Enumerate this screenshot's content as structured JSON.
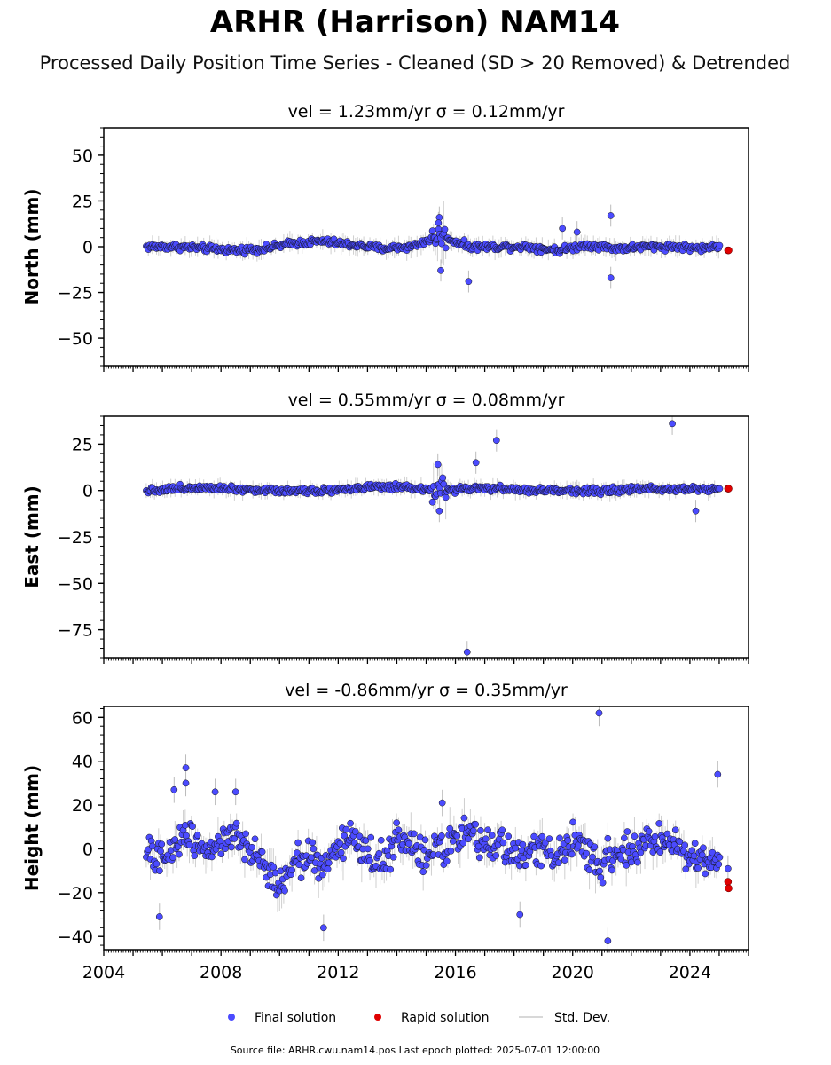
{
  "title": "ARHR (Harrison) NAM14",
  "subtitle": "Processed Daily Position Time Series - Cleaned (SD > 20 Removed) & Detrended",
  "footer": "Source file: ARHR.cwu.nam14.pos  Last epoch plotted: 2025-07-01 12:00:00",
  "legend": {
    "final": "Final solution",
    "rapid": "Rapid solution",
    "std": "Std. Dev."
  },
  "colors": {
    "final": "#4b4bff",
    "rapid": "#e00000",
    "std": "#bbbbbb",
    "edge": "#111111"
  },
  "chart_data": [
    {
      "type": "scatter",
      "panel_title": "vel = 1.23mm/yr   σ = 0.12mm/yr",
      "ylabel": "North (mm)",
      "xlim": [
        2004,
        2026
      ],
      "ylim": [
        -65,
        65
      ],
      "yticks": [
        "50",
        "25",
        "0",
        "−25",
        "−50"
      ],
      "ytick_values": [
        50,
        25,
        0,
        -25,
        -50
      ],
      "xticks": [
        "2004",
        "2008",
        "2012",
        "2016",
        "2020",
        "2024"
      ],
      "xtick_values": [
        2004,
        2008,
        2012,
        2016,
        2020,
        2024
      ],
      "series": [
        {
          "name": "Final solution",
          "x": [
            2005.5,
            2006.5,
            2007.5,
            2008.5,
            2009.5,
            2010.5,
            2011.5,
            2012.5,
            2013.5,
            2014.5,
            2015.45,
            2016.5,
            2017.5,
            2018.5,
            2019.5,
            2020.5,
            2021.5,
            2022.5,
            2023.5,
            2024.5,
            2025.1
          ],
          "y": [
            0,
            0,
            -1,
            -2,
            -1,
            2,
            3,
            1,
            -1,
            0,
            6,
            0,
            0,
            0,
            -2,
            1,
            -1,
            0,
            0,
            -1,
            1
          ]
        },
        {
          "name": "Rapid solution",
          "x": [
            2025.3,
            2025.32
          ],
          "y": [
            -2,
            -2
          ]
        }
      ],
      "outliers": [
        {
          "x": 2015.45,
          "y": 16
        },
        {
          "x": 2015.42,
          "y": 13
        },
        {
          "x": 2015.5,
          "y": -13
        },
        {
          "x": 2016.45,
          "y": -19
        },
        {
          "x": 2021.3,
          "y": 17
        },
        {
          "x": 2021.3,
          "y": -17
        },
        {
          "x": 2019.65,
          "y": 10
        },
        {
          "x": 2020.15,
          "y": 8
        }
      ]
    },
    {
      "type": "scatter",
      "panel_title": "vel = 0.55mm/yr   σ = 0.08mm/yr",
      "ylabel": "East (mm)",
      "xlim": [
        2004,
        2026
      ],
      "ylim": [
        -90,
        40
      ],
      "yticks": [
        "25",
        "0",
        "−25",
        "−50",
        "−75"
      ],
      "ytick_values": [
        25,
        0,
        -25,
        -50,
        -75
      ],
      "xticks": [
        "2004",
        "2008",
        "2012",
        "2016",
        "2020",
        "2024"
      ],
      "xtick_values": [
        2004,
        2008,
        2012,
        2016,
        2020,
        2024
      ],
      "series": [
        {
          "name": "Final solution",
          "x": [
            2005.5,
            2006.5,
            2007.5,
            2008.5,
            2009.5,
            2010.5,
            2011.5,
            2012.5,
            2013.5,
            2014.5,
            2015.4,
            2016.5,
            2017.5,
            2018.5,
            2019.5,
            2020.5,
            2021.5,
            2022.5,
            2023.5,
            2024.5
          ],
          "y": [
            0,
            1,
            2,
            1,
            0,
            0,
            0,
            1,
            2,
            1,
            0,
            1,
            1,
            0,
            0,
            0,
            0,
            1,
            1,
            1
          ]
        },
        {
          "name": "Rapid solution",
          "x": [
            2025.3,
            2025.32
          ],
          "y": [
            1,
            1
          ]
        }
      ],
      "outliers": [
        {
          "x": 2016.4,
          "y": -87
        },
        {
          "x": 2016.7,
          "y": 15
        },
        {
          "x": 2017.4,
          "y": 27
        },
        {
          "x": 2023.4,
          "y": 36
        },
        {
          "x": 2024.2,
          "y": -11
        },
        {
          "x": 2015.4,
          "y": 14
        },
        {
          "x": 2015.45,
          "y": -11
        }
      ]
    },
    {
      "type": "scatter",
      "panel_title": "vel = -0.86mm/yr   σ = 0.35mm/yr",
      "ylabel": "Height (mm)",
      "xlim": [
        2004,
        2026
      ],
      "ylim": [
        -46,
        65
      ],
      "yticks": [
        "60",
        "40",
        "20",
        "0",
        "−20",
        "−40"
      ],
      "ytick_values": [
        60,
        40,
        20,
        0,
        -20,
        -40
      ],
      "xticks": [
        "2004",
        "2008",
        "2012",
        "2016",
        "2020",
        "2024"
      ],
      "xtick_values": [
        2004,
        2008,
        2012,
        2016,
        2020,
        2024
      ],
      "series": [
        {
          "name": "Final solution",
          "x": [
            2005.5,
            2006.0,
            2006.5,
            2007.0,
            2007.5,
            2008.0,
            2008.5,
            2009.0,
            2009.5,
            2010.0,
            2010.5,
            2011.0,
            2011.5,
            2012.0,
            2012.5,
            2013.0,
            2013.5,
            2014.0,
            2014.5,
            2015.0,
            2015.5,
            2016.0,
            2016.5,
            2017.0,
            2017.5,
            2018.0,
            2018.5,
            2019.0,
            2019.5,
            2020.0,
            2020.5,
            2021.0,
            2021.5,
            2022.0,
            2022.5,
            2023.0,
            2023.5,
            2024.0,
            2024.5,
            2025.0
          ],
          "y": [
            -2,
            -6,
            3,
            8,
            -1,
            4,
            6,
            -3,
            -8,
            -15,
            -7,
            -2,
            -10,
            2,
            6,
            -3,
            -5,
            4,
            0,
            -3,
            1,
            3,
            6,
            1,
            3,
            -2,
            -4,
            2,
            -3,
            3,
            -4,
            -6,
            0,
            -2,
            3,
            4,
            2,
            -3,
            -5,
            -4
          ]
        },
        {
          "name": "Rapid solution",
          "x": [
            2025.3,
            2025.32
          ],
          "y": [
            -15,
            -18
          ]
        }
      ],
      "outliers": [
        {
          "x": 2020.9,
          "y": 62
        },
        {
          "x": 2021.2,
          "y": -42
        },
        {
          "x": 2024.95,
          "y": 34
        },
        {
          "x": 2006.8,
          "y": 37
        },
        {
          "x": 2006.8,
          "y": 30
        },
        {
          "x": 2006.4,
          "y": 27
        },
        {
          "x": 2007.8,
          "y": 26
        },
        {
          "x": 2008.5,
          "y": 26
        },
        {
          "x": 2005.9,
          "y": -31
        },
        {
          "x": 2011.5,
          "y": -36
        },
        {
          "x": 2018.2,
          "y": -30
        },
        {
          "x": 2025.3,
          "y": -9
        },
        {
          "x": 2015.55,
          "y": 21
        }
      ]
    }
  ]
}
